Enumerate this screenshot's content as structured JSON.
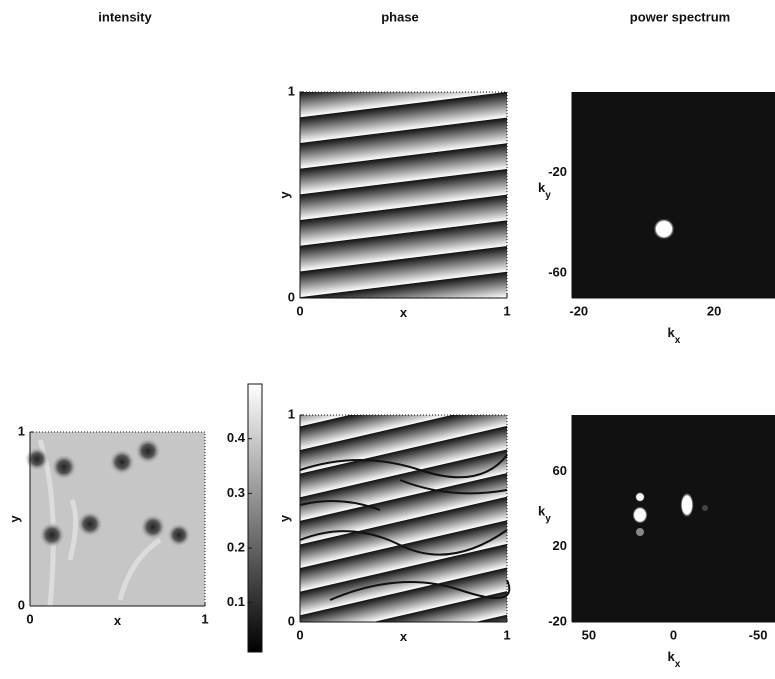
{
  "chart_data": [
    {
      "type": "image",
      "title": "phase",
      "xlabel": "x",
      "ylabel": "y",
      "xlim": [
        0,
        1
      ],
      "ylim": [
        0,
        1
      ],
      "xticks": [
        0,
        1
      ],
      "yticks": [
        0,
        1
      ]
    },
    {
      "type": "image",
      "title": "power spectrum",
      "xlabel": "k",
      "xlabel_sub": "x",
      "ylabel": "k",
      "ylabel_sub": "y",
      "xlim": [
        -22,
        38
      ],
      "ylim": [
        -70,
        12
      ],
      "xticks": [
        -20,
        20
      ],
      "yticks": [
        -20,
        -60
      ]
    },
    {
      "type": "image",
      "title": "intensity",
      "xlabel": "x",
      "ylabel": "y",
      "xlim": [
        0,
        1
      ],
      "ylim": [
        0,
        1
      ],
      "xticks": [
        0,
        1
      ],
      "yticks": [
        0,
        1
      ],
      "colorbar": {
        "lim": [
          0.01,
          0.5
        ],
        "ticks": [
          0.1,
          0.2,
          0.3,
          0.4
        ]
      }
    },
    {
      "type": "image",
      "xlabel": "x",
      "ylabel": "y",
      "xlim": [
        0,
        1
      ],
      "ylim": [
        0,
        1
      ],
      "xticks": [
        0,
        1
      ],
      "yticks": [
        0,
        1
      ]
    },
    {
      "type": "image",
      "xlabel": "k",
      "xlabel_sub": "x",
      "ylabel": "k",
      "ylabel_sub": "y",
      "xlim": [
        60,
        -60
      ],
      "ylim": [
        -20,
        90
      ],
      "xticks": [
        50,
        0,
        -50
      ],
      "yticks": [
        -20,
        20,
        60
      ]
    }
  ]
}
